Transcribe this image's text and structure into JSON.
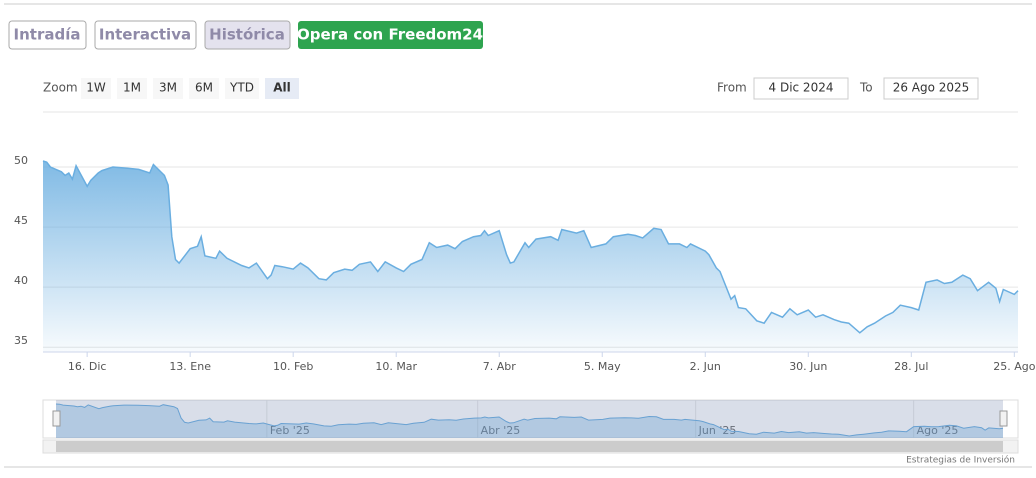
{
  "tabs": [
    "Intradía",
    "Interactiva",
    "Histórica",
    "Opera con Freedom24"
  ],
  "range_selector": {
    "zoom_label": "Zoom",
    "buttons": [
      "1W",
      "1M",
      "3M",
      "6M",
      "YTD",
      "All"
    ],
    "from_label": "From",
    "from": "4 Dic 2024",
    "to_label": "To",
    "to": "26 Ago 2025"
  },
  "credit": "Estrategias de Inversión",
  "chart_data": {
    "type": "area",
    "color": "#6aaee0",
    "xlim": [
      "2024-12-04",
      "2025-08-26"
    ],
    "xticks": [
      {
        "value": "2024-12-16",
        "label": "16. Dic"
      },
      {
        "value": "2025-01-13",
        "label": "13. Ene"
      },
      {
        "value": "2025-02-10",
        "label": "10. Feb"
      },
      {
        "value": "2025-03-10",
        "label": "10. Mar"
      },
      {
        "value": "2025-04-07",
        "label": "7. Abr"
      },
      {
        "value": "2025-05-05",
        "label": "5. May"
      },
      {
        "value": "2025-06-02",
        "label": "2. Jun"
      },
      {
        "value": "2025-06-30",
        "label": "30. Jun"
      },
      {
        "value": "2025-07-28",
        "label": "28. Jul"
      },
      {
        "value": "2025-08-25",
        "label": "25. Ago"
      }
    ],
    "ylim": [
      34.6,
      54
    ],
    "yticks": [
      35,
      40,
      45,
      50
    ],
    "grid": true,
    "navigator_ticks": [
      {
        "value": "2025-02-01",
        "label": "Feb '25"
      },
      {
        "value": "2025-04-01",
        "label": "Abr '25"
      },
      {
        "value": "2025-06-01",
        "label": "Jun '25"
      },
      {
        "value": "2025-08-01",
        "label": "Ago '25"
      }
    ],
    "x": [
      "2024-12-04",
      "2024-12-05",
      "2024-12-06",
      "2024-12-09",
      "2024-12-10",
      "2024-12-11",
      "2024-12-12",
      "2024-12-13",
      "2024-12-16",
      "2024-12-17",
      "2024-12-19",
      "2024-12-20",
      "2024-12-23",
      "2024-12-27",
      "2024-12-30",
      "2025-01-02",
      "2025-01-03",
      "2025-01-06",
      "2025-01-07",
      "2025-01-08",
      "2025-01-09",
      "2025-01-10",
      "2025-01-13",
      "2025-01-15",
      "2025-01-16",
      "2025-01-17",
      "2025-01-20",
      "2025-01-21",
      "2025-01-23",
      "2025-01-27",
      "2025-01-29",
      "2025-01-31",
      "2025-02-03",
      "2025-02-04",
      "2025-02-05",
      "2025-02-07",
      "2025-02-10",
      "2025-02-12",
      "2025-02-14",
      "2025-02-17",
      "2025-02-19",
      "2025-02-21",
      "2025-02-24",
      "2025-02-26",
      "2025-02-28",
      "2025-03-03",
      "2025-03-05",
      "2025-03-07",
      "2025-03-10",
      "2025-03-12",
      "2025-03-14",
      "2025-03-17",
      "2025-03-19",
      "2025-03-21",
      "2025-03-24",
      "2025-03-26",
      "2025-03-28",
      "2025-03-31",
      "2025-04-02",
      "2025-04-03",
      "2025-04-04",
      "2025-04-07",
      "2025-04-09",
      "2025-04-10",
      "2025-04-11",
      "2025-04-14",
      "2025-04-15",
      "2025-04-17",
      "2025-04-21",
      "2025-04-23",
      "2025-04-24",
      "2025-04-28",
      "2025-04-30",
      "2025-05-02",
      "2025-05-06",
      "2025-05-08",
      "2025-05-12",
      "2025-05-14",
      "2025-05-16",
      "2025-05-19",
      "2025-05-21",
      "2025-05-23",
      "2025-05-26",
      "2025-05-28",
      "2025-05-29",
      "2025-06-02",
      "2025-06-03",
      "2025-06-05",
      "2025-06-06",
      "2025-06-09",
      "2025-06-10",
      "2025-06-11",
      "2025-06-13",
      "2025-06-16",
      "2025-06-18",
      "2025-06-20",
      "2025-06-23",
      "2025-06-25",
      "2025-06-27",
      "2025-06-30",
      "2025-07-02",
      "2025-07-04",
      "2025-07-07",
      "2025-07-09",
      "2025-07-11",
      "2025-07-14",
      "2025-07-16",
      "2025-07-18",
      "2025-07-21",
      "2025-07-23",
      "2025-07-25",
      "2025-07-28",
      "2025-07-30",
      "2025-08-01",
      "2025-08-04",
      "2025-08-06",
      "2025-08-08",
      "2025-08-11",
      "2025-08-13",
      "2025-08-15",
      "2025-08-18",
      "2025-08-20",
      "2025-08-21",
      "2025-08-22",
      "2025-08-25",
      "2025-08-26"
    ],
    "values": [
      50.5,
      50.4,
      50.0,
      49.6,
      49.3,
      49.5,
      49.0,
      50.1,
      48.4,
      48.9,
      49.5,
      49.7,
      50.0,
      49.9,
      49.8,
      49.5,
      50.2,
      49.3,
      48.5,
      44.2,
      42.3,
      42.0,
      43.2,
      43.4,
      44.2,
      42.6,
      42.4,
      43.0,
      42.4,
      41.8,
      41.6,
      42.0,
      40.7,
      41.0,
      41.8,
      41.7,
      41.5,
      42.0,
      41.6,
      40.7,
      40.6,
      41.2,
      41.5,
      41.4,
      41.9,
      42.1,
      41.3,
      42.1,
      41.6,
      41.3,
      41.9,
      42.3,
      43.7,
      43.3,
      43.5,
      43.2,
      43.8,
      44.2,
      44.3,
      44.7,
      44.3,
      44.7,
      42.7,
      42.0,
      42.1,
      43.7,
      43.3,
      44.0,
      44.2,
      43.9,
      44.8,
      44.5,
      44.7,
      43.3,
      43.6,
      44.2,
      44.4,
      44.3,
      44.1,
      44.9,
      44.8,
      43.6,
      43.6,
      43.3,
      43.6,
      43.0,
      42.7,
      41.6,
      41.3,
      39.0,
      39.3,
      38.3,
      38.2,
      37.2,
      37.0,
      37.9,
      37.5,
      38.2,
      37.7,
      38.1,
      37.5,
      37.7,
      37.3,
      37.1,
      37.0,
      36.2,
      36.7,
      37.0,
      37.6,
      37.9,
      38.5,
      38.3,
      38.1,
      40.4,
      40.6,
      40.3,
      40.4,
      41.0,
      40.7,
      39.7,
      40.4,
      39.9,
      38.8,
      39.8,
      39.4,
      39.7
    ]
  }
}
